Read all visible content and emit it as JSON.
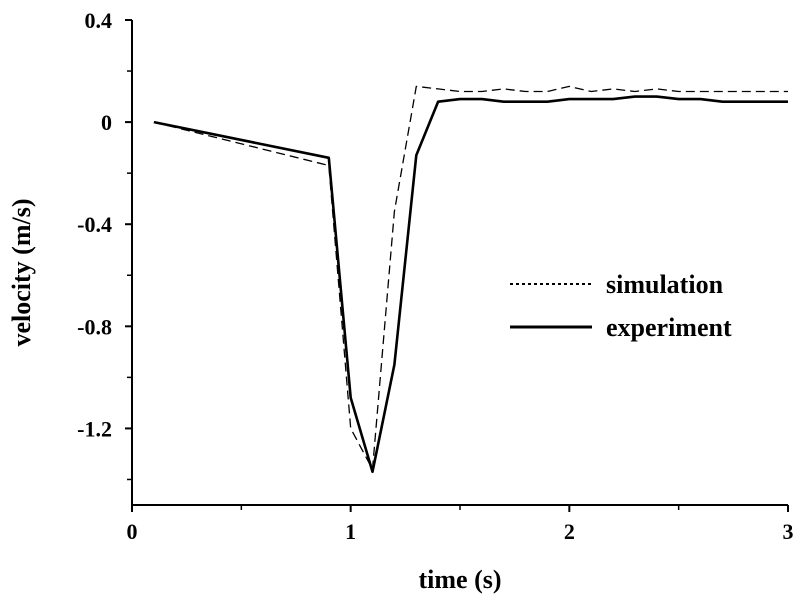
{
  "chart_data": {
    "type": "line",
    "xlabel": "time (s)",
    "ylabel": "velocity (m/s)",
    "xlim": [
      0,
      3
    ],
    "ylim": [
      -1.5,
      0.4
    ],
    "x_ticks": [
      0,
      1,
      2,
      3
    ],
    "x_tick_labels": [
      "0",
      "1",
      "2",
      "3"
    ],
    "x_minor_ticks": [
      0.5,
      1.5,
      2.5
    ],
    "y_ticks": [
      0.4,
      0,
      -0.4,
      -0.8,
      -1.2
    ],
    "y_tick_labels": [
      "0.4",
      "0",
      "-0.4",
      "-0.8",
      "-1.2"
    ],
    "y_minor_ticks": [
      0.2,
      -0.2,
      -0.6,
      -1.0,
      -1.4
    ],
    "grid": false,
    "legend_position": "right",
    "series": [
      {
        "name": "simulation",
        "style": "dashed",
        "color": "#000000",
        "x": [
          0.1,
          0.9,
          1.0,
          1.1,
          1.2,
          1.3,
          1.4,
          1.5,
          1.6,
          1.7,
          1.8,
          1.9,
          2.0,
          2.1,
          2.2,
          2.3,
          2.4,
          2.5,
          2.6,
          2.7,
          2.8,
          2.9,
          3.0
        ],
        "y": [
          0.0,
          -0.17,
          -1.2,
          -1.36,
          -0.35,
          0.14,
          0.13,
          0.12,
          0.12,
          0.13,
          0.12,
          0.12,
          0.14,
          0.12,
          0.13,
          0.12,
          0.13,
          0.12,
          0.12,
          0.12,
          0.12,
          0.12,
          0.12
        ]
      },
      {
        "name": "experiment",
        "style": "solid",
        "color": "#000000",
        "x": [
          0.1,
          0.9,
          1.0,
          1.1,
          1.2,
          1.3,
          1.4,
          1.5,
          1.6,
          1.7,
          1.8,
          1.9,
          2.0,
          2.1,
          2.2,
          2.3,
          2.4,
          2.5,
          2.6,
          2.7,
          2.8,
          2.9,
          3.0
        ],
        "y": [
          0.0,
          -0.14,
          -1.08,
          -1.37,
          -0.95,
          -0.13,
          0.08,
          0.09,
          0.09,
          0.08,
          0.08,
          0.08,
          0.09,
          0.09,
          0.09,
          0.1,
          0.1,
          0.09,
          0.09,
          0.08,
          0.08,
          0.08,
          0.08
        ]
      }
    ]
  }
}
